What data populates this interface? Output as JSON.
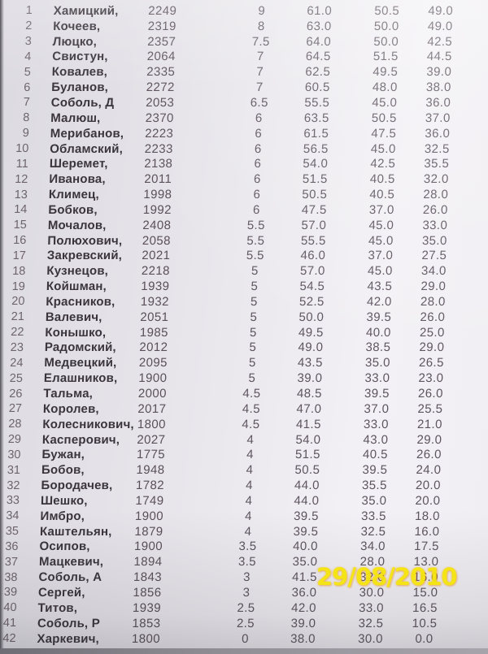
{
  "photo": {
    "timestamp": "29/08/2010",
    "timestamp_color": "#f6e50a"
  },
  "table": {
    "rows": [
      {
        "rank": "1",
        "name": "Хамицкий,",
        "rating": "2249",
        "points": "9",
        "tb1": "61.0",
        "tb2": "50.5",
        "tb3": "49.0"
      },
      {
        "rank": "2",
        "name": "Кочеев,",
        "rating": "2319",
        "points": "8",
        "tb1": "63.0",
        "tb2": "50.0",
        "tb3": "49.0"
      },
      {
        "rank": "3",
        "name": "Люцко,",
        "rating": "2357",
        "points": "7.5",
        "tb1": "64.0",
        "tb2": "50.0",
        "tb3": "42.5"
      },
      {
        "rank": "4",
        "name": "Свистун,",
        "rating": "2064",
        "points": "7",
        "tb1": "64.5",
        "tb2": "51.5",
        "tb3": "44.5"
      },
      {
        "rank": "5",
        "name": "Ковалев,",
        "rating": "2335",
        "points": "7",
        "tb1": "62.5",
        "tb2": "49.5",
        "tb3": "39.0"
      },
      {
        "rank": "6",
        "name": "Буланов,",
        "rating": "2272",
        "points": "7",
        "tb1": "60.5",
        "tb2": "48.0",
        "tb3": "38.0"
      },
      {
        "rank": "7",
        "name": "Соболь, Д",
        "rating": "2053",
        "points": "6.5",
        "tb1": "55.5",
        "tb2": "45.0",
        "tb3": "36.0"
      },
      {
        "rank": "8",
        "name": "Малюш,",
        "rating": "2370",
        "points": "6",
        "tb1": "63.5",
        "tb2": "50.5",
        "tb3": "37.0"
      },
      {
        "rank": "9",
        "name": "Мерибанов,",
        "rating": "2223",
        "points": "6",
        "tb1": "61.5",
        "tb2": "47.5",
        "tb3": "36.0"
      },
      {
        "rank": "10",
        "name": "Обламский,",
        "rating": "2233",
        "points": "6",
        "tb1": "56.5",
        "tb2": "45.0",
        "tb3": "32.5"
      },
      {
        "rank": "11",
        "name": "Шеремет,",
        "rating": "2138",
        "points": "6",
        "tb1": "54.0",
        "tb2": "42.5",
        "tb3": "35.5"
      },
      {
        "rank": "12",
        "name": "Иванова,",
        "rating": "2011",
        "points": "6",
        "tb1": "51.5",
        "tb2": "40.5",
        "tb3": "32.0"
      },
      {
        "rank": "13",
        "name": "Климец,",
        "rating": "1998",
        "points": "6",
        "tb1": "50.5",
        "tb2": "40.5",
        "tb3": "28.0"
      },
      {
        "rank": "14",
        "name": "Бобков,",
        "rating": "1992",
        "points": "6",
        "tb1": "47.5",
        "tb2": "37.0",
        "tb3": "26.0"
      },
      {
        "rank": "15",
        "name": "Мочалов,",
        "rating": "2408",
        "points": "5.5",
        "tb1": "57.0",
        "tb2": "45.0",
        "tb3": "33.0"
      },
      {
        "rank": "16",
        "name": "Полюхович,",
        "rating": "2058",
        "points": "5.5",
        "tb1": "55.5",
        "tb2": "45.0",
        "tb3": "35.0"
      },
      {
        "rank": "17",
        "name": "Закревский,",
        "rating": "2021",
        "points": "5.5",
        "tb1": "46.0",
        "tb2": "37.0",
        "tb3": "27.5"
      },
      {
        "rank": "18",
        "name": "Кузнецов,",
        "rating": "2218",
        "points": "5",
        "tb1": "57.0",
        "tb2": "45.0",
        "tb3": "34.0"
      },
      {
        "rank": "19",
        "name": "Койшман,",
        "rating": "1939",
        "points": "5",
        "tb1": "54.5",
        "tb2": "43.5",
        "tb3": "29.0"
      },
      {
        "rank": "20",
        "name": "Красников,",
        "rating": "1932",
        "points": "5",
        "tb1": "52.5",
        "tb2": "42.0",
        "tb3": "28.0"
      },
      {
        "rank": "21",
        "name": "Валевич,",
        "rating": "2051",
        "points": "5",
        "tb1": "50.0",
        "tb2": "39.5",
        "tb3": "26.0"
      },
      {
        "rank": "22",
        "name": "Конышко,",
        "rating": "1985",
        "points": "5",
        "tb1": "49.5",
        "tb2": "40.0",
        "tb3": "25.0"
      },
      {
        "rank": "23",
        "name": "Радомский,",
        "rating": "2012",
        "points": "5",
        "tb1": "49.0",
        "tb2": "38.5",
        "tb3": "29.0"
      },
      {
        "rank": "24",
        "name": "Медвецкий,",
        "rating": "2095",
        "points": "5",
        "tb1": "43.5",
        "tb2": "35.0",
        "tb3": "26.5"
      },
      {
        "rank": "25",
        "name": "Елашников,",
        "rating": "1900",
        "points": "5",
        "tb1": "39.0",
        "tb2": "33.0",
        "tb3": "23.0"
      },
      {
        "rank": "26",
        "name": "Тальма,",
        "rating": "2000",
        "points": "4.5",
        "tb1": "48.5",
        "tb2": "39.5",
        "tb3": "26.0"
      },
      {
        "rank": "27",
        "name": "Королев,",
        "rating": "2017",
        "points": "4.5",
        "tb1": "47.0",
        "tb2": "37.0",
        "tb3": "25.5"
      },
      {
        "rank": "28",
        "name": "Колесникович,",
        "rating": "1800",
        "points": "4.5",
        "tb1": "41.5",
        "tb2": "33.0",
        "tb3": "21.0"
      },
      {
        "rank": "29",
        "name": "Касперович,",
        "rating": "2027",
        "points": "4",
        "tb1": "54.0",
        "tb2": "43.0",
        "tb3": "29.0"
      },
      {
        "rank": "30",
        "name": "Бужан,",
        "rating": "1775",
        "points": "4",
        "tb1": "51.5",
        "tb2": "40.5",
        "tb3": "26.0"
      },
      {
        "rank": "31",
        "name": "Бобов,",
        "rating": "1948",
        "points": "4",
        "tb1": "50.5",
        "tb2": "39.5",
        "tb3": "24.0"
      },
      {
        "rank": "32",
        "name": "Бородачев,",
        "rating": "1782",
        "points": "4",
        "tb1": "44.0",
        "tb2": "35.5",
        "tb3": "20.0"
      },
      {
        "rank": "33",
        "name": "Шешко,",
        "rating": "1749",
        "points": "4",
        "tb1": "44.0",
        "tb2": "35.0",
        "tb3": "20.0"
      },
      {
        "rank": "34",
        "name": "Имбро,",
        "rating": "1900",
        "points": "4",
        "tb1": "39.5",
        "tb2": "33.5",
        "tb3": "18.0"
      },
      {
        "rank": "35",
        "name": "Каштельян,",
        "rating": "1879",
        "points": "4",
        "tb1": "39.5",
        "tb2": "32.5",
        "tb3": "16.0"
      },
      {
        "rank": "36",
        "name": "Осипов,",
        "rating": "1900",
        "points": "3.5",
        "tb1": "40.0",
        "tb2": "34.0",
        "tb3": "17.5"
      },
      {
        "rank": "37",
        "name": "Мацкевич,",
        "rating": "1894",
        "points": "3.5",
        "tb1": "35.0",
        "tb2": "28.0",
        "tb3": "13.0"
      },
      {
        "rank": "38",
        "name": "Соболь, А",
        "rating": "1843",
        "points": "3",
        "tb1": "41.5",
        "tb2": "32.0",
        "tb3": "16.0"
      },
      {
        "rank": "39",
        "name": "Сергей,",
        "rating": "1856",
        "points": "3",
        "tb1": "36.0",
        "tb2": "30.0",
        "tb3": "15.0"
      },
      {
        "rank": "40",
        "name": "Титов,",
        "rating": "1939",
        "points": "2.5",
        "tb1": "42.0",
        "tb2": "33.0",
        "tb3": "16.5"
      },
      {
        "rank": "41",
        "name": "Соболь, Р",
        "rating": "1853",
        "points": "2.5",
        "tb1": "39.0",
        "tb2": "32.5",
        "tb3": "10.5"
      },
      {
        "rank": "42",
        "name": "Харкевич,",
        "rating": "1800",
        "points": "0",
        "tb1": "38.0",
        "tb2": "30.0",
        "tb3": "0.0"
      }
    ]
  }
}
